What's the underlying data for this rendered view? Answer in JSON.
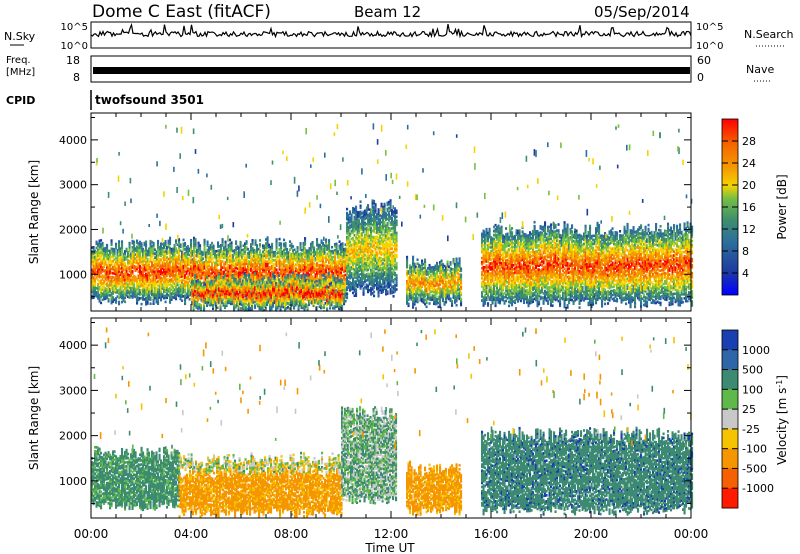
{
  "header": {
    "station": "Dome C East (fitACF)",
    "beam": "Beam 12",
    "date": "05/Sep/2014"
  },
  "nsky": {
    "label": "N.Sky",
    "tick_top": "10^5",
    "tick_bottom": "10^0",
    "right_label": "N.Search",
    "right_tick_top": "10^5",
    "right_tick_bottom": "10^0"
  },
  "freq": {
    "label_line1": "Freq.",
    "label_line2": "[MHz]",
    "tick_top": "18",
    "tick_bottom": "8",
    "right_label": "Nave",
    "right_tick_top": "60",
    "right_tick_bottom": "0"
  },
  "cpid": {
    "label": "CPID",
    "value": "twofsound 3501"
  },
  "power_colorbar": {
    "label": "Power [dB]",
    "ticks": [
      "4",
      "8",
      "12",
      "16",
      "20",
      "24",
      "28"
    ],
    "colors": [
      "#0000ff",
      "#1f3d9e",
      "#2c6e9c",
      "#3f8f6e",
      "#76c043",
      "#f5d300",
      "#f59b00",
      "#f56a00",
      "#ff0000"
    ]
  },
  "velocity_colorbar": {
    "label": "Velocity [m s^-1]",
    "ticks": [
      "1000",
      "500",
      "100",
      "25",
      "-25",
      "-100",
      "-500",
      "-1000"
    ],
    "colors": [
      "#1a3fb0",
      "#2f66a8",
      "#3d8a72",
      "#5fb84a",
      "#c8c8c8",
      "#f5c300",
      "#f59500",
      "#f56000",
      "#ff1a00"
    ]
  },
  "chart_data": [
    {
      "type": "heatmap",
      "title": "",
      "xlabel": "Time UT",
      "ylabel": "Slant Range [km]",
      "x_ticks": [
        "00:00",
        "04:00",
        "08:00",
        "12:00",
        "16:00",
        "20:00",
        "00:00"
      ],
      "y_ticks": [
        "1000",
        "2000",
        "3000",
        "4000"
      ],
      "xlim_hours": [
        0,
        24
      ],
      "ylim_km": [
        180,
        4600
      ],
      "colorbar": "Power [dB]",
      "bands": [
        {
          "t_start": 0.0,
          "t_end": 10.2,
          "r_low": 420,
          "r_high": 1650,
          "peak_db": 28
        },
        {
          "t_start": 4.0,
          "t_end": 10.0,
          "r_low": 250,
          "r_high": 900,
          "peak_db": 30
        },
        {
          "t_start": 10.2,
          "t_end": 12.2,
          "r_low": 600,
          "r_high": 2500,
          "peak_db": 20
        },
        {
          "t_start": 12.6,
          "t_end": 14.8,
          "r_low": 350,
          "r_high": 1250,
          "peak_db": 24
        },
        {
          "t_start": 15.6,
          "t_end": 24.0,
          "r_low": 350,
          "r_high": 2000,
          "peak_db": 28
        }
      ]
    },
    {
      "type": "heatmap",
      "title": "",
      "xlabel": "Time UT",
      "ylabel": "Slant Range [km]",
      "x_ticks": [
        "00:00",
        "04:00",
        "08:00",
        "12:00",
        "16:00",
        "20:00",
        "00:00"
      ],
      "y_ticks": [
        "1000",
        "2000",
        "3000",
        "4000"
      ],
      "xlim_hours": [
        0,
        24
      ],
      "ylim_km": [
        180,
        4600
      ],
      "colorbar": "Velocity [m s^-1]",
      "bands": [
        {
          "t_start": 0.0,
          "t_end": 3.5,
          "r_low": 450,
          "r_high": 1600,
          "velocity_ms": 100
        },
        {
          "t_start": 3.5,
          "t_end": 10.0,
          "r_low": 300,
          "r_high": 1200,
          "velocity_ms": -100
        },
        {
          "t_start": 3.5,
          "t_end": 10.0,
          "r_low": 1250,
          "r_high": 1450,
          "velocity_ms": 0
        },
        {
          "t_start": 10.0,
          "t_end": 12.2,
          "r_low": 600,
          "r_high": 2500,
          "velocity_ms": 50
        },
        {
          "t_start": 12.6,
          "t_end": 14.8,
          "r_low": 350,
          "r_high": 1250,
          "velocity_ms": -100
        },
        {
          "t_start": 15.6,
          "t_end": 24.0,
          "r_low": 350,
          "r_high": 2000,
          "velocity_ms": 150
        }
      ]
    }
  ]
}
